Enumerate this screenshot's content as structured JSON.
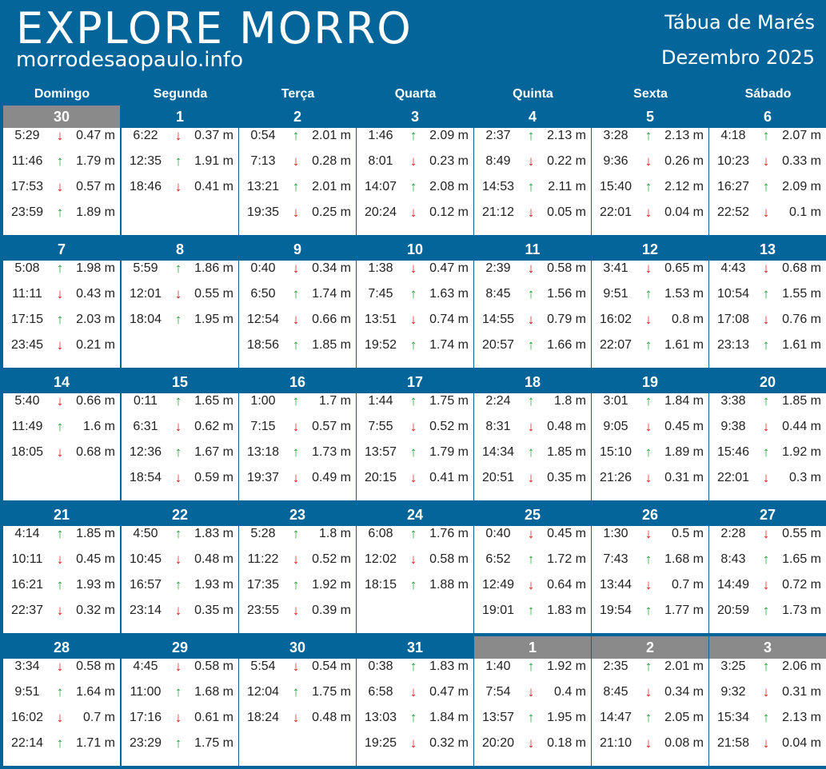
{
  "header": {
    "logo_text": "EXPLORE MORRO",
    "site": "morrodesaopaulo.info",
    "title": "Tábua de Marés",
    "month": "Dezembro 2025"
  },
  "weekdays": [
    "Domingo",
    "Segunda",
    "Terça",
    "Quarta",
    "Quinta",
    "Sexta",
    "Sábado"
  ],
  "arrow_colors": {
    "up": "#1aa532",
    "down": "#e0191c"
  },
  "weeks": [
    [
      {
        "date": "30",
        "other": true,
        "tides": [
          [
            "5:29",
            "down",
            "0.47 m"
          ],
          [
            "11:46",
            "up",
            "1.79 m"
          ],
          [
            "17:53",
            "down",
            "0.57 m"
          ],
          [
            "23:59",
            "up",
            "1.89 m"
          ]
        ]
      },
      {
        "date": "1",
        "tides": [
          [
            "6:22",
            "down",
            "0.37 m"
          ],
          [
            "12:35",
            "up",
            "1.91 m"
          ],
          [
            "18:46",
            "down",
            "0.41 m"
          ]
        ]
      },
      {
        "date": "2",
        "tides": [
          [
            "0:54",
            "up",
            "2.01 m"
          ],
          [
            "7:13",
            "down",
            "0.28 m"
          ],
          [
            "13:21",
            "up",
            "2.01 m"
          ],
          [
            "19:35",
            "down",
            "0.25 m"
          ]
        ]
      },
      {
        "date": "3",
        "tides": [
          [
            "1:46",
            "up",
            "2.09 m"
          ],
          [
            "8:01",
            "down",
            "0.23 m"
          ],
          [
            "14:07",
            "up",
            "2.08 m"
          ],
          [
            "20:24",
            "down",
            "0.12 m"
          ]
        ]
      },
      {
        "date": "4",
        "tides": [
          [
            "2:37",
            "up",
            "2.13 m"
          ],
          [
            "8:49",
            "down",
            "0.22 m"
          ],
          [
            "14:53",
            "up",
            "2.11 m"
          ],
          [
            "21:12",
            "down",
            "0.05 m"
          ]
        ]
      },
      {
        "date": "5",
        "tides": [
          [
            "3:28",
            "up",
            "2.13 m"
          ],
          [
            "9:36",
            "down",
            "0.26 m"
          ],
          [
            "15:40",
            "up",
            "2.12 m"
          ],
          [
            "22:01",
            "down",
            "0.04 m"
          ]
        ]
      },
      {
        "date": "6",
        "tides": [
          [
            "4:18",
            "up",
            "2.07 m"
          ],
          [
            "10:23",
            "down",
            "0.33 m"
          ],
          [
            "16:27",
            "up",
            "2.09 m"
          ],
          [
            "22:52",
            "down",
            "0.1 m"
          ]
        ]
      }
    ],
    [
      {
        "date": "7",
        "tides": [
          [
            "5:08",
            "up",
            "1.98 m"
          ],
          [
            "11:11",
            "down",
            "0.43 m"
          ],
          [
            "17:15",
            "up",
            "2.03 m"
          ],
          [
            "23:45",
            "down",
            "0.21 m"
          ]
        ]
      },
      {
        "date": "8",
        "tides": [
          [
            "5:59",
            "up",
            "1.86 m"
          ],
          [
            "12:01",
            "down",
            "0.55 m"
          ],
          [
            "18:04",
            "up",
            "1.95 m"
          ]
        ]
      },
      {
        "date": "9",
        "tides": [
          [
            "0:40",
            "down",
            "0.34 m"
          ],
          [
            "6:50",
            "up",
            "1.74 m"
          ],
          [
            "12:54",
            "down",
            "0.66 m"
          ],
          [
            "18:56",
            "up",
            "1.85 m"
          ]
        ]
      },
      {
        "date": "10",
        "tides": [
          [
            "1:38",
            "down",
            "0.47 m"
          ],
          [
            "7:45",
            "up",
            "1.63 m"
          ],
          [
            "13:51",
            "down",
            "0.74 m"
          ],
          [
            "19:52",
            "up",
            "1.74 m"
          ]
        ]
      },
      {
        "date": "11",
        "tides": [
          [
            "2:39",
            "down",
            "0.58 m"
          ],
          [
            "8:45",
            "up",
            "1.56 m"
          ],
          [
            "14:55",
            "down",
            "0.79 m"
          ],
          [
            "20:57",
            "up",
            "1.66 m"
          ]
        ]
      },
      {
        "date": "12",
        "tides": [
          [
            "3:41",
            "down",
            "0.65 m"
          ],
          [
            "9:51",
            "up",
            "1.53 m"
          ],
          [
            "16:02",
            "down",
            "0.8 m"
          ],
          [
            "22:07",
            "up",
            "1.61 m"
          ]
        ]
      },
      {
        "date": "13",
        "tides": [
          [
            "4:43",
            "down",
            "0.68 m"
          ],
          [
            "10:54",
            "up",
            "1.55 m"
          ],
          [
            "17:08",
            "down",
            "0.76 m"
          ],
          [
            "23:13",
            "up",
            "1.61 m"
          ]
        ]
      }
    ],
    [
      {
        "date": "14",
        "tides": [
          [
            "5:40",
            "down",
            "0.66 m"
          ],
          [
            "11:49",
            "up",
            "1.6 m"
          ],
          [
            "18:05",
            "down",
            "0.68 m"
          ]
        ]
      },
      {
        "date": "15",
        "tides": [
          [
            "0:11",
            "up",
            "1.65 m"
          ],
          [
            "6:31",
            "down",
            "0.62 m"
          ],
          [
            "12:36",
            "up",
            "1.67 m"
          ],
          [
            "18:54",
            "down",
            "0.59 m"
          ]
        ]
      },
      {
        "date": "16",
        "tides": [
          [
            "1:00",
            "up",
            "1.7 m"
          ],
          [
            "7:15",
            "down",
            "0.57 m"
          ],
          [
            "13:18",
            "up",
            "1.73 m"
          ],
          [
            "19:37",
            "down",
            "0.49 m"
          ]
        ]
      },
      {
        "date": "17",
        "tides": [
          [
            "1:44",
            "up",
            "1.75 m"
          ],
          [
            "7:55",
            "down",
            "0.52 m"
          ],
          [
            "13:57",
            "up",
            "1.79 m"
          ],
          [
            "20:15",
            "down",
            "0.41 m"
          ]
        ]
      },
      {
        "date": "18",
        "tides": [
          [
            "2:24",
            "up",
            "1.8 m"
          ],
          [
            "8:31",
            "down",
            "0.48 m"
          ],
          [
            "14:34",
            "up",
            "1.85 m"
          ],
          [
            "20:51",
            "down",
            "0.35 m"
          ]
        ]
      },
      {
        "date": "19",
        "tides": [
          [
            "3:01",
            "up",
            "1.84 m"
          ],
          [
            "9:05",
            "down",
            "0.45 m"
          ],
          [
            "15:10",
            "up",
            "1.89 m"
          ],
          [
            "21:26",
            "down",
            "0.31 m"
          ]
        ]
      },
      {
        "date": "20",
        "tides": [
          [
            "3:38",
            "up",
            "1.85 m"
          ],
          [
            "9:38",
            "down",
            "0.44 m"
          ],
          [
            "15:46",
            "up",
            "1.92 m"
          ],
          [
            "22:01",
            "down",
            "0.3 m"
          ]
        ]
      }
    ],
    [
      {
        "date": "21",
        "tides": [
          [
            "4:14",
            "up",
            "1.85 m"
          ],
          [
            "10:11",
            "down",
            "0.45 m"
          ],
          [
            "16:21",
            "up",
            "1.93 m"
          ],
          [
            "22:37",
            "down",
            "0.32 m"
          ]
        ]
      },
      {
        "date": "22",
        "tides": [
          [
            "4:50",
            "up",
            "1.83 m"
          ],
          [
            "10:45",
            "down",
            "0.48 m"
          ],
          [
            "16:57",
            "up",
            "1.93 m"
          ],
          [
            "23:14",
            "down",
            "0.35 m"
          ]
        ]
      },
      {
        "date": "23",
        "tides": [
          [
            "5:28",
            "up",
            "1.8 m"
          ],
          [
            "11:22",
            "down",
            "0.52 m"
          ],
          [
            "17:35",
            "up",
            "1.92 m"
          ],
          [
            "23:55",
            "down",
            "0.39 m"
          ]
        ]
      },
      {
        "date": "24",
        "tides": [
          [
            "6:08",
            "up",
            "1.76 m"
          ],
          [
            "12:02",
            "down",
            "0.58 m"
          ],
          [
            "18:15",
            "up",
            "1.88 m"
          ]
        ]
      },
      {
        "date": "25",
        "tides": [
          [
            "0:40",
            "down",
            "0.45 m"
          ],
          [
            "6:52",
            "up",
            "1.72 m"
          ],
          [
            "12:49",
            "down",
            "0.64 m"
          ],
          [
            "19:01",
            "up",
            "1.83 m"
          ]
        ]
      },
      {
        "date": "26",
        "tides": [
          [
            "1:30",
            "down",
            "0.5 m"
          ],
          [
            "7:43",
            "up",
            "1.68 m"
          ],
          [
            "13:44",
            "down",
            "0.7 m"
          ],
          [
            "19:54",
            "up",
            "1.77 m"
          ]
        ]
      },
      {
        "date": "27",
        "tides": [
          [
            "2:28",
            "down",
            "0.55 m"
          ],
          [
            "8:43",
            "up",
            "1.65 m"
          ],
          [
            "14:49",
            "down",
            "0.72 m"
          ],
          [
            "20:59",
            "up",
            "1.73 m"
          ]
        ]
      }
    ],
    [
      {
        "date": "28",
        "tides": [
          [
            "3:34",
            "down",
            "0.58 m"
          ],
          [
            "9:51",
            "up",
            "1.64 m"
          ],
          [
            "16:02",
            "down",
            "0.7 m"
          ],
          [
            "22:14",
            "up",
            "1.71 m"
          ]
        ]
      },
      {
        "date": "29",
        "tides": [
          [
            "4:45",
            "down",
            "0.58 m"
          ],
          [
            "11:00",
            "up",
            "1.68 m"
          ],
          [
            "17:16",
            "down",
            "0.61 m"
          ],
          [
            "23:29",
            "up",
            "1.75 m"
          ]
        ]
      },
      {
        "date": "30",
        "tides": [
          [
            "5:54",
            "down",
            "0.54 m"
          ],
          [
            "12:04",
            "up",
            "1.75 m"
          ],
          [
            "18:24",
            "down",
            "0.48 m"
          ]
        ]
      },
      {
        "date": "31",
        "tides": [
          [
            "0:38",
            "up",
            "1.83 m"
          ],
          [
            "6:58",
            "down",
            "0.47 m"
          ],
          [
            "13:03",
            "up",
            "1.84 m"
          ],
          [
            "19:25",
            "down",
            "0.32 m"
          ]
        ]
      },
      {
        "date": "1",
        "other": true,
        "tides": [
          [
            "1:40",
            "up",
            "1.92 m"
          ],
          [
            "7:54",
            "down",
            "0.4 m"
          ],
          [
            "13:57",
            "up",
            "1.95 m"
          ],
          [
            "20:20",
            "down",
            "0.18 m"
          ]
        ]
      },
      {
        "date": "2",
        "other": true,
        "tides": [
          [
            "2:35",
            "up",
            "2.01 m"
          ],
          [
            "8:45",
            "down",
            "0.34 m"
          ],
          [
            "14:47",
            "up",
            "2.05 m"
          ],
          [
            "21:10",
            "down",
            "0.08 m"
          ]
        ]
      },
      {
        "date": "3",
        "other": true,
        "tides": [
          [
            "3:25",
            "up",
            "2.06 m"
          ],
          [
            "9:32",
            "down",
            "0.31 m"
          ],
          [
            "15:34",
            "up",
            "2.13 m"
          ],
          [
            "21:58",
            "down",
            "0.04 m"
          ]
        ]
      }
    ]
  ]
}
